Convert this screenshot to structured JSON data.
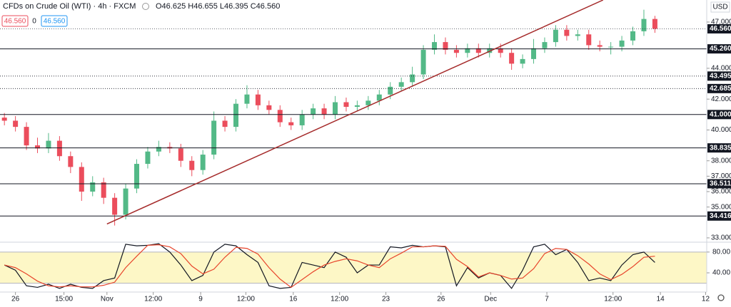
{
  "header": {
    "symbol": "CFDs on Crude Oil (WTI) · 4h · FXCM",
    "ohlc": "O46.625 H46.655 L46.395 C46.560",
    "bid": "46.560",
    "spread": "0",
    "ask": "46.560"
  },
  "chart_data": [
    {
      "type": "candlestick",
      "currency": "USD",
      "up_color": "#53b987",
      "down_color": "#eb4d5c",
      "open": [
        40.8,
        40.6,
        40.2,
        39.0,
        38.8,
        39.3,
        38.3,
        37.6,
        36.0,
        36.6,
        35.6,
        34.5,
        36.2,
        37.8,
        38.6,
        38.9,
        38.8,
        38.0,
        37.4,
        38.4,
        40.6,
        40.2,
        41.7,
        42.3,
        41.6,
        41.3,
        40.5,
        40.3,
        41.0,
        41.4,
        41.0,
        41.8,
        41.5,
        41.6,
        41.9,
        42.3,
        42.8,
        43.1,
        43.6,
        45.2,
        45.7,
        45.2,
        45.0,
        45.3,
        45.0,
        45.3,
        45.0,
        44.3,
        44.6,
        45.3,
        45.7,
        46.5,
        46.1,
        46.2,
        45.5,
        45.4,
        45.4,
        45.8,
        46.4,
        47.2
      ],
      "high": [
        41.1,
        40.9,
        40.5,
        39.5,
        39.8,
        39.6,
        38.6,
        37.9,
        37.0,
        36.9,
        35.9,
        36.5,
        38.1,
        38.9,
        39.3,
        39.2,
        39.1,
        38.3,
        38.7,
        41.2,
        40.9,
        42.0,
        42.9,
        42.6,
        41.9,
        41.6,
        40.8,
        41.3,
        41.7,
        41.7,
        42.2,
        42.1,
        41.9,
        42.2,
        42.6,
        43.1,
        43.4,
        44.1,
        45.5,
        46.2,
        46.0,
        45.5,
        45.6,
        45.6,
        45.6,
        45.6,
        45.3,
        44.9,
        45.9,
        46.0,
        46.8,
        46.8,
        46.5,
        46.5,
        45.8,
        45.7,
        46.1,
        46.7,
        47.8,
        47.4
      ],
      "low": [
        40.3,
        39.9,
        38.7,
        38.5,
        38.5,
        38.0,
        37.2,
        35.4,
        35.7,
        35.2,
        33.8,
        34.2,
        35.9,
        37.5,
        38.3,
        38.5,
        37.6,
        37.0,
        37.1,
        38.1,
        39.9,
        39.9,
        41.4,
        41.3,
        41.0,
        40.2,
        40.0,
        40.0,
        40.7,
        40.7,
        40.7,
        41.2,
        41.2,
        41.3,
        41.6,
        42.0,
        42.5,
        42.8,
        43.3,
        44.9,
        44.9,
        44.7,
        44.7,
        44.7,
        44.7,
        44.7,
        43.9,
        44.0,
        44.3,
        45.0,
        45.4,
        45.8,
        45.8,
        45.2,
        45.1,
        44.9,
        45.1,
        45.5,
        46.1,
        46.3
      ],
      "close": [
        40.6,
        40.2,
        39.0,
        38.8,
        39.3,
        38.3,
        37.6,
        36.0,
        36.6,
        35.6,
        34.5,
        36.2,
        37.8,
        38.6,
        38.9,
        38.8,
        38.0,
        37.4,
        38.4,
        40.6,
        40.2,
        41.7,
        42.3,
        41.6,
        41.3,
        40.5,
        40.3,
        41.0,
        41.4,
        41.0,
        41.8,
        41.5,
        41.6,
        41.9,
        42.3,
        42.8,
        43.1,
        43.6,
        45.2,
        45.7,
        45.2,
        45.0,
        45.3,
        45.0,
        45.3,
        45.0,
        44.3,
        44.6,
        45.3,
        45.7,
        46.5,
        46.1,
        46.2,
        45.5,
        45.4,
        45.4,
        45.8,
        46.4,
        47.2,
        46.56
      ],
      "xlim": [
        -0.4,
        63.7
      ],
      "ylim": [
        32.72,
        48.43
      ],
      "yticks": [
        {
          "value": 47,
          "label": "47.000"
        },
        {
          "value": 44,
          "label": "44.000"
        },
        {
          "value": 42,
          "label": "42.000"
        },
        {
          "value": 40,
          "label": "40.000"
        },
        {
          "value": 38,
          "label": "38.000"
        },
        {
          "value": 37,
          "label": "37.000"
        },
        {
          "value": 36,
          "label": "36.000"
        },
        {
          "value": 35,
          "label": "35.000"
        },
        {
          "value": 33,
          "label": "33.000"
        }
      ],
      "xticks": [
        {
          "value": 1.0,
          "label": "26"
        },
        {
          "value": 5.4,
          "label": "15:00"
        },
        {
          "value": 9.3,
          "label": "Nov"
        },
        {
          "value": 13.5,
          "label": "12:00"
        },
        {
          "value": 17.8,
          "label": "9"
        },
        {
          "value": 21.9,
          "label": "12:00"
        },
        {
          "value": 26.2,
          "label": "16"
        },
        {
          "value": 30.4,
          "label": "12:00"
        },
        {
          "value": 34.6,
          "label": "23"
        },
        {
          "value": 39.6,
          "label": "26"
        },
        {
          "value": 44.1,
          "label": "Dec"
        },
        {
          "value": 49.2,
          "label": "7"
        },
        {
          "value": 55.2,
          "label": "12:00"
        },
        {
          "value": 59.5,
          "label": "14"
        },
        {
          "value": 63.6,
          "label": "12"
        }
      ],
      "levels": [
        {
          "value": 45.26,
          "label": "45.260",
          "style": "solid"
        },
        {
          "value": 43.495,
          "label": "43.495",
          "style": "dotted"
        },
        {
          "value": 42.685,
          "label": "42.685",
          "style": "dotted"
        },
        {
          "value": 41,
          "label": "41.000",
          "style": "solid"
        },
        {
          "value": 38.835,
          "label": "38.835",
          "style": "solid"
        },
        {
          "value": 36.511,
          "label": "36.511",
          "style": "solid"
        },
        {
          "value": 34.416,
          "label": "34.416",
          "style": "solid"
        }
      ],
      "last_price": {
        "value": 46.56,
        "label": "46.560"
      },
      "trendline": {
        "x": [
          9.3,
          54.3
        ],
        "y": [
          33.9,
          48.43
        ],
        "color": "#a52a2a"
      }
    },
    {
      "type": "stochastic",
      "xlim": [
        -0.4,
        63.7
      ],
      "ylim": [
        3,
        99
      ],
      "band": [
        20,
        80
      ],
      "band_color": "#fdf7c6",
      "yticks": [
        {
          "value": 80,
          "label": "80.00"
        },
        {
          "value": 40,
          "label": "40.00"
        }
      ],
      "series": [
        {
          "color": "#131722",
          "values": [
            55,
            45,
            15,
            12,
            18,
            10,
            18,
            12,
            10,
            25,
            30,
            95,
            92,
            93,
            96,
            80,
            55,
            25,
            35,
            80,
            95,
            92,
            75,
            60,
            15,
            10,
            12,
            60,
            55,
            50,
            80,
            70,
            40,
            55,
            55,
            90,
            88,
            93,
            90,
            92,
            90,
            15,
            50,
            30,
            40,
            35,
            10,
            45,
            90,
            95,
            75,
            85,
            60,
            25,
            30,
            25,
            55,
            75,
            80,
            60
          ]
        },
        {
          "color": "#e8452c",
          "values": [
            55,
            50,
            38,
            24,
            15,
            13,
            15,
            13,
            13,
            16,
            22,
            50,
            72,
            93,
            94,
            90,
            77,
            53,
            38,
            47,
            70,
            89,
            87,
            76,
            50,
            28,
            12,
            27,
            42,
            55,
            62,
            67,
            63,
            55,
            50,
            67,
            78,
            90,
            90,
            92,
            91,
            66,
            52,
            32,
            40,
            35,
            28,
            30,
            48,
            77,
            87,
            85,
            73,
            57,
            38,
            27,
            37,
            52,
            70,
            72
          ]
        }
      ]
    }
  ]
}
